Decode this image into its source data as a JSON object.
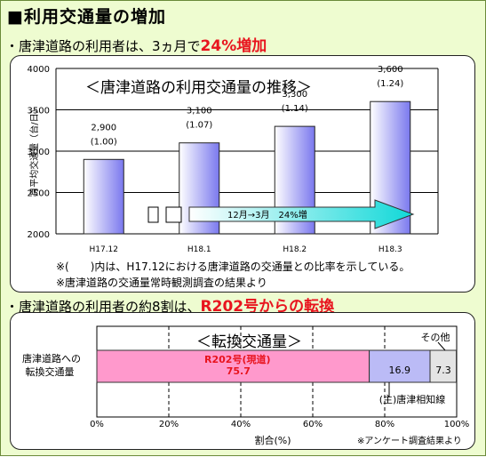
{
  "heading": "■利用交通量の増加",
  "line1": {
    "text": "・唐津道路の利用者は、3ヵ月で",
    "highlight": "24%増加"
  },
  "line2": {
    "text": "・唐津道路の利用者の約8割は、",
    "highlight": "R202号からの転換"
  },
  "chart_data": [
    {
      "type": "bar",
      "title": "＜唐津道路の利用交通量の推移＞",
      "ylabel": "月平均交通量（台/日）",
      "ylim": [
        2000,
        4000
      ],
      "yticks": [
        2000,
        2500,
        3000,
        3500,
        4000
      ],
      "categories": [
        "H17.12",
        "H18.1",
        "H18.2",
        "H18.3"
      ],
      "values": [
        2900,
        3100,
        3300,
        3600
      ],
      "value_labels": [
        "2,900",
        "3,100",
        "3,300",
        "3,600"
      ],
      "ratio_labels": [
        "(1.00)",
        "(1.07)",
        "(1.14)",
        "(1.24)"
      ],
      "annotation": "12月→3月　24%増",
      "notes": [
        "※(　　)内は、H17.12における唐津道路の交通量との比率を示している。",
        "※唐津道路の交通量常時観測調査の結果より"
      ],
      "colors": {
        "bar_light": "#ffffff",
        "bar_dark": "#7a78ee",
        "arrow_start": "#ffffff",
        "arrow_end": "#10d8d8"
      }
    },
    {
      "type": "bar",
      "orientation": "horizontal",
      "stacked": true,
      "title": "＜転換交通量＞",
      "category_label": "唐津道路への\n転換交通量",
      "xlabel": "割合(%)",
      "xlim": [
        0,
        100
      ],
      "xticks": [
        "0%",
        "20%",
        "40%",
        "60%",
        "80%",
        "100%"
      ],
      "series": [
        {
          "name": "R202号(現道)",
          "value": 75.7,
          "label": "75.7",
          "color": "#ff99cc"
        },
        {
          "name": "(主)唐津相知線",
          "value": 16.9,
          "label": "16.9",
          "color": "#bbbbf6"
        },
        {
          "name": "その他",
          "value": 7.3,
          "label": "7.3",
          "color": "#e4e4e4"
        }
      ],
      "source": "※アンケート調査結果より"
    }
  ]
}
